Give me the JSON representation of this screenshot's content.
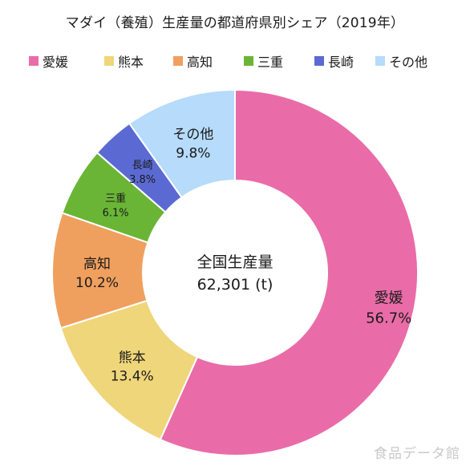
{
  "chart_data": {
    "type": "pie",
    "title": "マダイ（養殖）生産量の都道府県別シェア（2019年）",
    "center_label": "全国生産量",
    "center_value": "62,301 (t)",
    "legend_position": "top",
    "categories": [
      "愛媛",
      "熊本",
      "高知",
      "三重",
      "長崎",
      "その他"
    ],
    "values": [
      56.7,
      13.4,
      10.2,
      6.1,
      3.8,
      9.8
    ],
    "value_labels": [
      "56.7%",
      "13.4%",
      "10.2%",
      "6.1%",
      "3.8%",
      "9.8%"
    ],
    "colors": [
      "#e96ca8",
      "#efd67a",
      "#f0a05e",
      "#6ab536",
      "#5b6ad3",
      "#b6dbfb"
    ]
  },
  "watermark": "食品データ館"
}
